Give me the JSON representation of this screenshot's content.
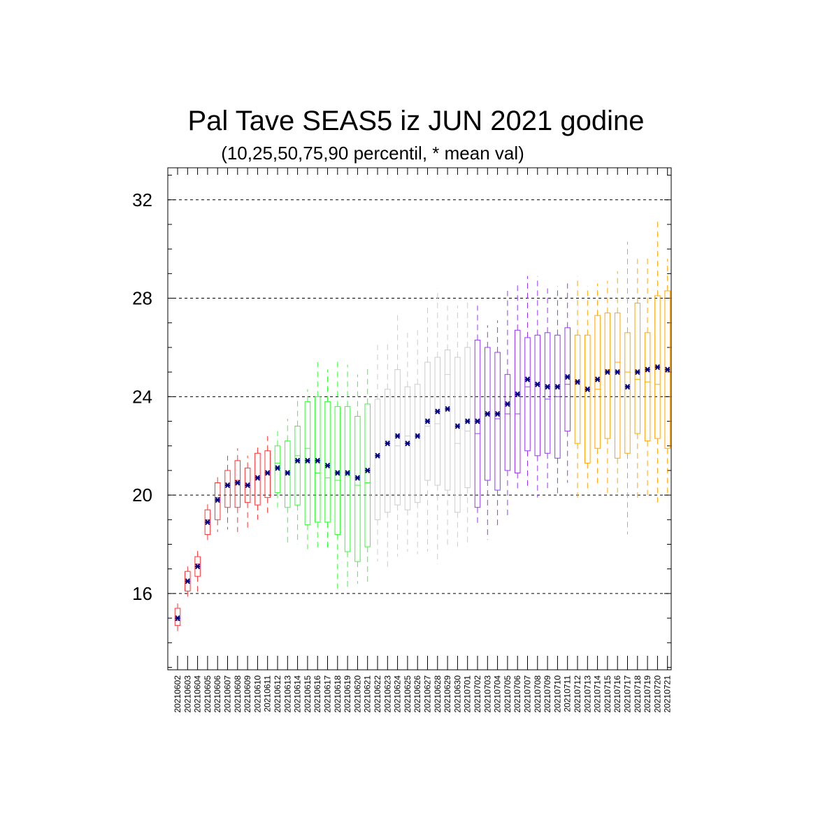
{
  "chart_data": {
    "type": "box",
    "title": "Pal Tave SEAS5 iz JUN 2021 godine",
    "subtitle": "(10,25,50,75,90 percentil, * mean val)",
    "ylim": [
      12.9,
      33.3
    ],
    "yticks": [
      16,
      20,
      24,
      28,
      32
    ],
    "ytick_labels": [
      "16",
      "20",
      "24",
      "28",
      "32"
    ],
    "grid": "dashed horizontal at major y ticks",
    "mean_marker": "*",
    "mean_color": "#000080",
    "month_colors": [
      "#ff3333",
      "#33ff33",
      "#cccccc",
      "#9933ff",
      "#ffa500"
    ],
    "categories": [
      "20210602",
      "20210603",
      "20210604",
      "20210605",
      "20210606",
      "20210607",
      "20210608",
      "20210609",
      "20210610",
      "20210611",
      "20210612",
      "20210613",
      "20210614",
      "20210615",
      "20210616",
      "20210617",
      "20210618",
      "20210619",
      "20210620",
      "20210621",
      "20210622",
      "20210623",
      "20210624",
      "20210625",
      "20210626",
      "20210627",
      "20210628",
      "20210629",
      "20210630",
      "20210701",
      "20210702",
      "20210703",
      "20210704",
      "20210705",
      "20210706",
      "20210707",
      "20210708",
      "20210709",
      "20210710",
      "20210711",
      "20210712",
      "20210713",
      "20210714",
      "20210715",
      "20210716",
      "20210717",
      "20210718",
      "20210719",
      "20210720",
      "20210721"
    ],
    "color_index": [
      0,
      0,
      0,
      0,
      0,
      0,
      0,
      0,
      0,
      0,
      1,
      1,
      1,
      1,
      1,
      1,
      1,
      1,
      1,
      1,
      2,
      2,
      2,
      2,
      2,
      2,
      2,
      2,
      2,
      2,
      3,
      3,
      3,
      3,
      3,
      3,
      3,
      3,
      3,
      3,
      4,
      4,
      4,
      4,
      4,
      4,
      4,
      4,
      4,
      4
    ],
    "p10": [
      14.3,
      15.7,
      16.0,
      18.0,
      18.5,
      18.6,
      18.5,
      18.6,
      19.0,
      19.2,
      19.5,
      18.0,
      18.0,
      17.8,
      17.8,
      17.7,
      16.2,
      16.1,
      16.4,
      16.4,
      17.3,
      17.0,
      17.5,
      17.7,
      17.6,
      17.7,
      17.2,
      17.8,
      17.9,
      17.9,
      18.7,
      18.2,
      18.7,
      19.1,
      20.2,
      20.3,
      19.9,
      20.2,
      20.0,
      20.5,
      19.9,
      20.1,
      20.3,
      20.0,
      20.1,
      18.4,
      19.8,
      20.0,
      19.7,
      20.0
    ],
    "p25": [
      14.7,
      16.1,
      16.7,
      18.4,
      19.0,
      19.5,
      19.5,
      19.7,
      19.6,
      19.9,
      20.1,
      19.5,
      19.6,
      18.8,
      18.9,
      18.9,
      18.4,
      17.7,
      17.3,
      17.9,
      19.0,
      19.3,
      19.6,
      19.4,
      19.7,
      20.6,
      20.4,
      20.2,
      19.3,
      20.3,
      19.5,
      20.6,
      20.2,
      21.0,
      20.9,
      21.8,
      21.6,
      21.7,
      21.5,
      22.6,
      22.1,
      21.3,
      21.9,
      22.3,
      21.5,
      21.7,
      22.5,
      22.2,
      22.3,
      21.9
    ],
    "p50": [
      14.9,
      16.5,
      17.2,
      19.0,
      19.9,
      20.4,
      20.6,
      20.4,
      20.7,
      20.9,
      21.3,
      20.9,
      21.6,
      21.9,
      20.9,
      20.7,
      20.6,
      20.8,
      20.4,
      20.5,
      21.6,
      22.2,
      22.0,
      22.4,
      22.4,
      22.8,
      22.9,
      24.9,
      22.1,
      22.6,
      22.5,
      23.3,
      23.1,
      23.3,
      23.3,
      24.4,
      24.5,
      23.9,
      24.0,
      24.5,
      24.5,
      24.3,
      24.3,
      25.1,
      25.4,
      25.0,
      24.7,
      24.6,
      24.5,
      25.0
    ],
    "p75": [
      15.4,
      16.9,
      17.5,
      19.4,
      20.5,
      21.0,
      21.4,
      21.1,
      21.7,
      21.8,
      22.0,
      22.2,
      22.8,
      23.8,
      24.0,
      23.8,
      23.6,
      23.6,
      23.2,
      23.7,
      23.9,
      24.3,
      25.1,
      24.4,
      24.5,
      25.4,
      25.6,
      25.9,
      25.6,
      26.0,
      26.3,
      26.0,
      25.8,
      24.9,
      26.7,
      26.4,
      26.5,
      26.6,
      26.5,
      26.8,
      26.5,
      26.5,
      27.3,
      27.4,
      27.4,
      26.6,
      27.8,
      26.6,
      28.1,
      28.3
    ],
    "p90": [
      15.6,
      17.1,
      17.9,
      19.8,
      20.9,
      21.6,
      21.9,
      21.6,
      22.1,
      22.4,
      22.6,
      23.1,
      23.9,
      24.3,
      25.4,
      25.1,
      25.5,
      25.3,
      24.9,
      25.3,
      26.1,
      26.3,
      27.4,
      26.6,
      26.7,
      27.8,
      28.4,
      27.7,
      27.7,
      28.0,
      27.7,
      26.9,
      27.1,
      28.3,
      28.6,
      28.9,
      28.9,
      28.4,
      28.5,
      28.6,
      28.9,
      28.5,
      28.6,
      28.7,
      29.1,
      30.3,
      29.6,
      29.7,
      31.2,
      29.6
    ],
    "mean": [
      15.0,
      16.5,
      17.1,
      18.9,
      19.8,
      20.4,
      20.5,
      20.4,
      20.7,
      20.9,
      21.1,
      20.9,
      21.4,
      21.4,
      21.4,
      21.2,
      20.9,
      20.9,
      20.7,
      21.0,
      21.6,
      22.1,
      22.4,
      22.1,
      22.4,
      23.0,
      23.4,
      23.5,
      22.8,
      23.0,
      23.0,
      23.3,
      23.3,
      23.7,
      24.1,
      24.7,
      24.5,
      24.4,
      24.4,
      24.8,
      24.6,
      24.3,
      24.7,
      25.0,
      25.0,
      24.4,
      25.0,
      25.1,
      25.2,
      25.1
    ]
  }
}
